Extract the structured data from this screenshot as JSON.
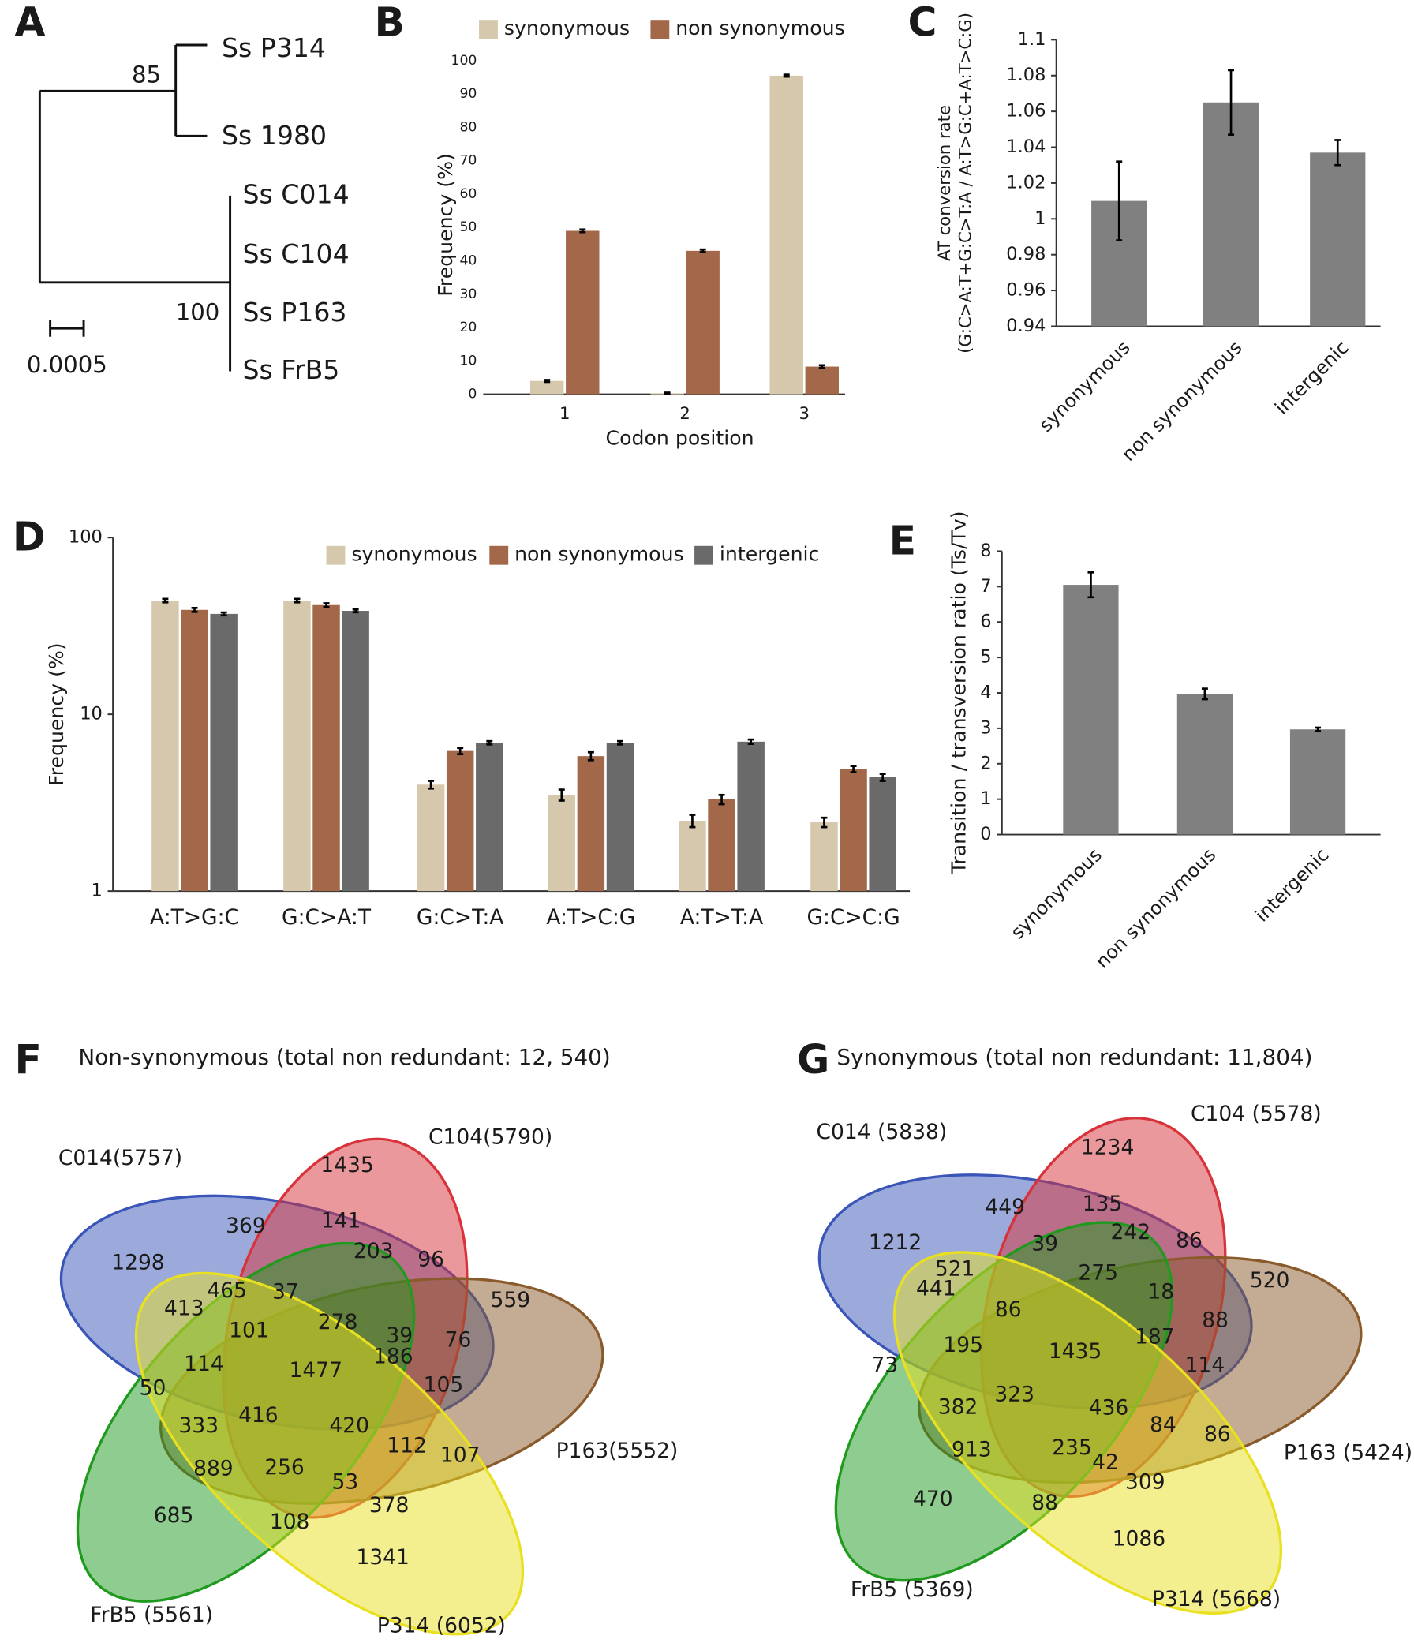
{
  "panels": [
    "A",
    "B",
    "C",
    "D",
    "E",
    "F",
    "G"
  ],
  "tree": {
    "leaves": [
      "Ss P314",
      "Ss 1980",
      "Ss C014",
      "Ss C104",
      "Ss P163",
      "Ss FrB5"
    ],
    "support": [
      85,
      100
    ],
    "scale": 0.0005
  },
  "chart_data": [
    {
      "type": "bar",
      "categories": [
        "1",
        "2",
        "3"
      ],
      "xlabel": "Codon position",
      "ylabel": "Frequency (%)",
      "series": [
        {
          "name": "synonymous",
          "color": "#d6c8ac",
          "values": [
            4,
            0.3,
            95.5
          ],
          "errors": [
            0.3,
            0.2,
            0.3
          ]
        },
        {
          "name": "non synonymous",
          "color": "#a3684a",
          "values": [
            49,
            43,
            8.3
          ],
          "errors": [
            0.4,
            0.4,
            0.4
          ]
        }
      ],
      "ylim": [
        0,
        100
      ],
      "yticks": [
        0,
        10,
        20,
        30,
        40,
        50,
        60,
        70,
        80,
        90,
        100
      ],
      "legend": "top"
    },
    {
      "type": "bar",
      "categories": [
        "synonymous",
        "non synonymous",
        "intergenic"
      ],
      "ylabel": [
        "AT conversion rate",
        "(G:C>A:T+G:C>T:A / A:T>G:C+A:T>C:G)"
      ],
      "series": [
        {
          "color": "#808080",
          "values": [
            1.01,
            1.065,
            1.037
          ],
          "errors": [
            0.022,
            0.018,
            0.007
          ]
        }
      ],
      "ylim": [
        0.94,
        1.1
      ],
      "yticks": [
        0.94,
        0.96,
        0.98,
        1,
        1.02,
        1.04,
        1.06,
        1.08,
        1.1
      ]
    },
    {
      "type": "bar",
      "categories": [
        "A:T>G:C",
        "G:C>A:T",
        "G:C>T:A",
        "A:T>C:G",
        "A:T>T:A",
        "G:C>C:G"
      ],
      "ylabel": "Frequency (%)",
      "series": [
        {
          "name": "synonymous",
          "color": "#d6c8ac",
          "values": [
            44,
            44,
            4.0,
            3.5,
            2.5,
            2.45
          ],
          "errors": [
            1,
            1,
            0.2,
            0.25,
            0.2,
            0.15
          ]
        },
        {
          "name": "non synonymous",
          "color": "#a3684a",
          "values": [
            39,
            41.5,
            6.2,
            5.8,
            3.3,
            4.9
          ],
          "errors": [
            1,
            1,
            0.25,
            0.3,
            0.2,
            0.2
          ]
        },
        {
          "name": "intergenic",
          "color": "#6a6a6a",
          "values": [
            37,
            38.5,
            6.9,
            6.9,
            7.0,
            4.4
          ],
          "errors": [
            0.7,
            0.7,
            0.15,
            0.15,
            0.2,
            0.2
          ]
        }
      ],
      "ylim": [
        1,
        100
      ],
      "yticks": [
        1,
        10,
        100
      ],
      "log_scale": true,
      "legend": "top"
    },
    {
      "type": "bar",
      "categories": [
        "synonymous",
        "non synonymous",
        "intergenic"
      ],
      "ylabel": "Transition / transversion ratio (Ts/Tv)",
      "series": [
        {
          "color": "#808080",
          "values": [
            7.05,
            3.97,
            2.97
          ],
          "errors": [
            0.35,
            0.15,
            0.05
          ]
        }
      ],
      "ylim": [
        0,
        8
      ],
      "yticks": [
        0,
        1,
        2,
        3,
        4,
        5,
        6,
        7,
        8
      ]
    }
  ],
  "venn": [
    {
      "title": "Non-synonymous (total non redundant: 12, 540)",
      "sets": [
        {
          "name": "C014(5757)",
          "color": "#3a55b8"
        },
        {
          "name": "C104(5790)",
          "color": "#d8323a"
        },
        {
          "name": "P163(5552)",
          "color": "#8a5a2a"
        },
        {
          "name": "FrB5 (5561)",
          "color": "#1f9a1f"
        },
        {
          "name": "P314 (6052)",
          "color": "#e8e020"
        }
      ],
      "counts": [
        1435,
        369,
        141,
        1298,
        465,
        37,
        203,
        96,
        413,
        278,
        39,
        559,
        101,
        76,
        114,
        1477,
        186,
        105,
        50,
        416,
        333,
        420,
        112,
        107,
        889,
        256,
        53,
        378,
        685,
        108,
        1341
      ]
    },
    {
      "title": "Synonymous (total non redundant: 11,804)",
      "sets": [
        {
          "name": "C014 (5838)",
          "color": "#3a55b8"
        },
        {
          "name": "C104 (5578)",
          "color": "#d8323a"
        },
        {
          "name": "P163 (5424)",
          "color": "#8a5a2a"
        },
        {
          "name": "FrB5 (5369)",
          "color": "#1f9a1f"
        },
        {
          "name": "P314 (5668)",
          "color": "#e8e020"
        }
      ],
      "counts": [
        1234,
        449,
        135,
        1212,
        521,
        39,
        242,
        86,
        441,
        86,
        275,
        18,
        520,
        187,
        88,
        1435,
        195,
        73,
        114,
        323,
        382,
        436,
        84,
        86,
        913,
        235,
        42,
        309,
        470,
        88,
        1086
      ]
    }
  ]
}
